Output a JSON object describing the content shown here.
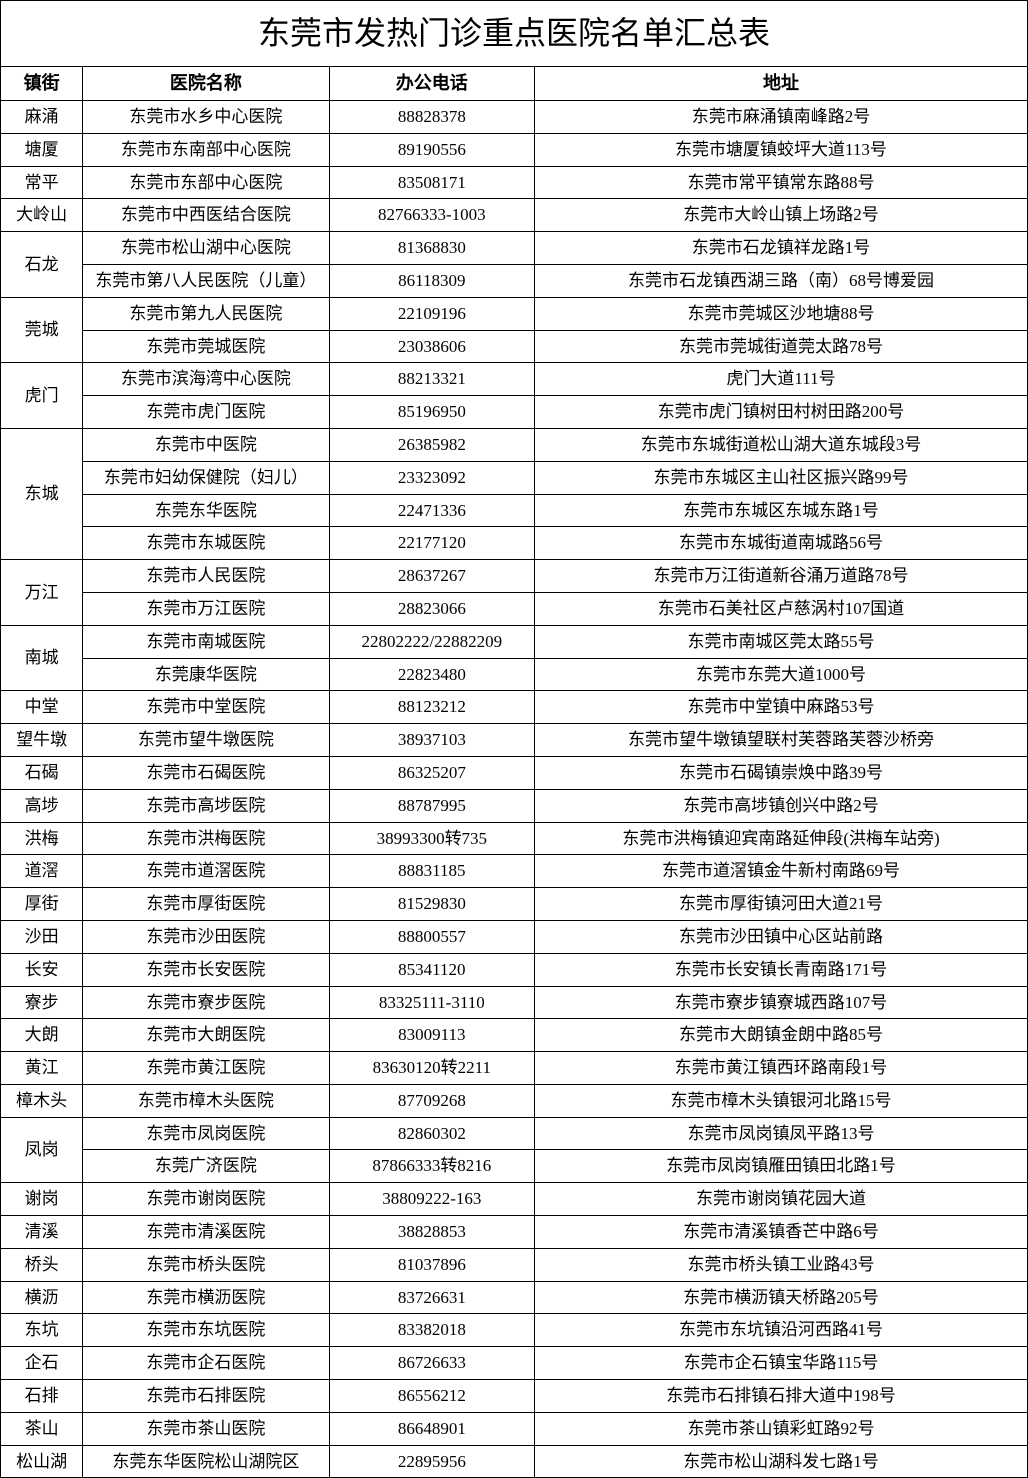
{
  "title": "东莞市发热门诊重点医院名单汇总表",
  "headers": {
    "town": "镇街",
    "hospital": "医院名称",
    "phone": "办公电话",
    "address": "地址"
  },
  "groups": [
    {
      "town": "麻涌",
      "rows": [
        {
          "hospital": "东莞市水乡中心医院",
          "phone": "88828378",
          "address": "东莞市麻涌镇南峰路2号"
        }
      ]
    },
    {
      "town": "塘厦",
      "rows": [
        {
          "hospital": "东莞市东南部中心医院",
          "phone": "89190556",
          "address": "东莞市塘厦镇蛟坪大道113号"
        }
      ]
    },
    {
      "town": "常平",
      "rows": [
        {
          "hospital": "东莞市东部中心医院",
          "phone": "83508171",
          "address": "东莞市常平镇常东路88号"
        }
      ]
    },
    {
      "town": "大岭山",
      "rows": [
        {
          "hospital": "东莞市中西医结合医院",
          "phone": "82766333-1003",
          "address": "东莞市大岭山镇上场路2号"
        }
      ]
    },
    {
      "town": "石龙",
      "rows": [
        {
          "hospital": "东莞市松山湖中心医院",
          "phone": "81368830",
          "address": "东莞市石龙镇祥龙路1号"
        },
        {
          "hospital": "东莞市第八人民医院（儿童）",
          "phone": "86118309",
          "address": "东莞市石龙镇西湖三路（南）68号博爱园"
        }
      ]
    },
    {
      "town": "莞城",
      "rows": [
        {
          "hospital": "东莞市第九人民医院",
          "phone": "22109196",
          "address": "东莞市莞城区沙地塘88号"
        },
        {
          "hospital": "东莞市莞城医院",
          "phone": "23038606",
          "address": "东莞市莞城街道莞太路78号"
        }
      ]
    },
    {
      "town": "虎门",
      "rows": [
        {
          "hospital": "东莞市滨海湾中心医院",
          "phone": "88213321",
          "address": "虎门大道111号"
        },
        {
          "hospital": "东莞市虎门医院",
          "phone": "85196950",
          "address": "东莞市虎门镇树田村树田路200号"
        }
      ]
    },
    {
      "town": "东城",
      "rows": [
        {
          "hospital": "东莞市中医院",
          "phone": "26385982",
          "address": "东莞市东城街道松山湖大道东城段3号"
        },
        {
          "hospital": "东莞市妇幼保健院（妇儿）",
          "phone": "23323092",
          "address": "东莞市东城区主山社区振兴路99号"
        },
        {
          "hospital": "东莞东华医院",
          "phone": "22471336",
          "address": "东莞市东城区东城东路1号"
        },
        {
          "hospital": "东莞市东城医院",
          "phone": "22177120",
          "address": "东莞市东城街道南城路56号"
        }
      ]
    },
    {
      "town": "万江",
      "rows": [
        {
          "hospital": "东莞市人民医院",
          "phone": "28637267",
          "address": "东莞市万江街道新谷涌万道路78号"
        },
        {
          "hospital": "东莞市万江医院",
          "phone": "28823066",
          "address": "东莞市石美社区卢慈涡村107国道"
        }
      ]
    },
    {
      "town": "南城",
      "rows": [
        {
          "hospital": "东莞市南城医院",
          "phone": "22802222/22882209",
          "address": "东莞市南城区莞太路55号"
        },
        {
          "hospital": "东莞康华医院",
          "phone": "22823480",
          "address": "东莞市东莞大道1000号"
        }
      ]
    },
    {
      "town": "中堂",
      "rows": [
        {
          "hospital": "东莞市中堂医院",
          "phone": "88123212",
          "address": "东莞市中堂镇中麻路53号"
        }
      ]
    },
    {
      "town": "望牛墩",
      "rows": [
        {
          "hospital": "东莞市望牛墩医院",
          "phone": "38937103",
          "address": "东莞市望牛墩镇望联村芙蓉路芙蓉沙桥旁"
        }
      ]
    },
    {
      "town": "石碣",
      "rows": [
        {
          "hospital": "东莞市石碣医院",
          "phone": "86325207",
          "address": "东莞市石碣镇崇焕中路39号"
        }
      ]
    },
    {
      "town": "高埗",
      "rows": [
        {
          "hospital": "东莞市高埗医院",
          "phone": "88787995",
          "address": "东莞市高埗镇创兴中路2号"
        }
      ]
    },
    {
      "town": "洪梅",
      "rows": [
        {
          "hospital": "东莞市洪梅医院",
          "phone": "38993300转735",
          "address": "东莞市洪梅镇迎宾南路延伸段(洪梅车站旁)"
        }
      ]
    },
    {
      "town": "道滘",
      "rows": [
        {
          "hospital": "东莞市道滘医院",
          "phone": "88831185",
          "address": "东莞市道滘镇金牛新村南路69号"
        }
      ]
    },
    {
      "town": "厚街",
      "rows": [
        {
          "hospital": "东莞市厚街医院",
          "phone": "81529830",
          "address": "东莞市厚街镇河田大道21号"
        }
      ]
    },
    {
      "town": "沙田",
      "rows": [
        {
          "hospital": "东莞市沙田医院",
          "phone": "88800557",
          "address": "东莞市沙田镇中心区站前路"
        }
      ]
    },
    {
      "town": "长安",
      "rows": [
        {
          "hospital": "东莞市长安医院",
          "phone": "85341120",
          "address": "东莞市长安镇长青南路171号"
        }
      ]
    },
    {
      "town": "寮步",
      "rows": [
        {
          "hospital": "东莞市寮步医院",
          "phone": "83325111-3110",
          "address": "东莞市寮步镇寮城西路107号"
        }
      ]
    },
    {
      "town": "大朗",
      "rows": [
        {
          "hospital": "东莞市大朗医院",
          "phone": "83009113",
          "address": "东莞市大朗镇金朗中路85号"
        }
      ]
    },
    {
      "town": "黄江",
      "rows": [
        {
          "hospital": "东莞市黄江医院",
          "phone": "83630120转2211",
          "address": "东莞市黄江镇西环路南段1号"
        }
      ]
    },
    {
      "town": "樟木头",
      "rows": [
        {
          "hospital": "东莞市樟木头医院",
          "phone": "87709268",
          "address": "东莞市樟木头镇银河北路15号"
        }
      ]
    },
    {
      "town": "凤岗",
      "rows": [
        {
          "hospital": "东莞市凤岗医院",
          "phone": "82860302",
          "address": "东莞市凤岗镇凤平路13号"
        },
        {
          "hospital": "东莞广济医院",
          "phone": "87866333转8216",
          "address": "东莞市凤岗镇雁田镇田北路1号"
        }
      ]
    },
    {
      "town": "谢岗",
      "rows": [
        {
          "hospital": "东莞市谢岗医院",
          "phone": "38809222-163",
          "address": "东莞市谢岗镇花园大道"
        }
      ]
    },
    {
      "town": "清溪",
      "rows": [
        {
          "hospital": "东莞市清溪医院",
          "phone": "38828853",
          "address": "东莞市清溪镇香芒中路6号"
        }
      ]
    },
    {
      "town": "桥头",
      "rows": [
        {
          "hospital": "东莞市桥头医院",
          "phone": "81037896",
          "address": "东莞市桥头镇工业路43号"
        }
      ]
    },
    {
      "town": "横沥",
      "rows": [
        {
          "hospital": "东莞市横沥医院",
          "phone": "83726631",
          "address": "东莞市横沥镇天桥路205号"
        }
      ]
    },
    {
      "town": "东坑",
      "rows": [
        {
          "hospital": "东莞市东坑医院",
          "phone": "83382018",
          "address": "东莞市东坑镇沿河西路41号"
        }
      ]
    },
    {
      "town": "企石",
      "rows": [
        {
          "hospital": "东莞市企石医院",
          "phone": "86726633",
          "address": "东莞市企石镇宝华路115号"
        }
      ]
    },
    {
      "town": "石排",
      "rows": [
        {
          "hospital": "东莞市石排医院",
          "phone": "86556212",
          "address": "东莞市石排镇石排大道中198号"
        }
      ]
    },
    {
      "town": "茶山",
      "rows": [
        {
          "hospital": "东莞市茶山医院",
          "phone": "86648901",
          "address": "东莞市茶山镇彩虹路92号"
        }
      ]
    },
    {
      "town": "松山湖",
      "rows": [
        {
          "hospital": "东莞东华医院松山湖院区",
          "phone": "22895956",
          "address": "东莞市松山湖科发七路1号"
        }
      ]
    }
  ]
}
